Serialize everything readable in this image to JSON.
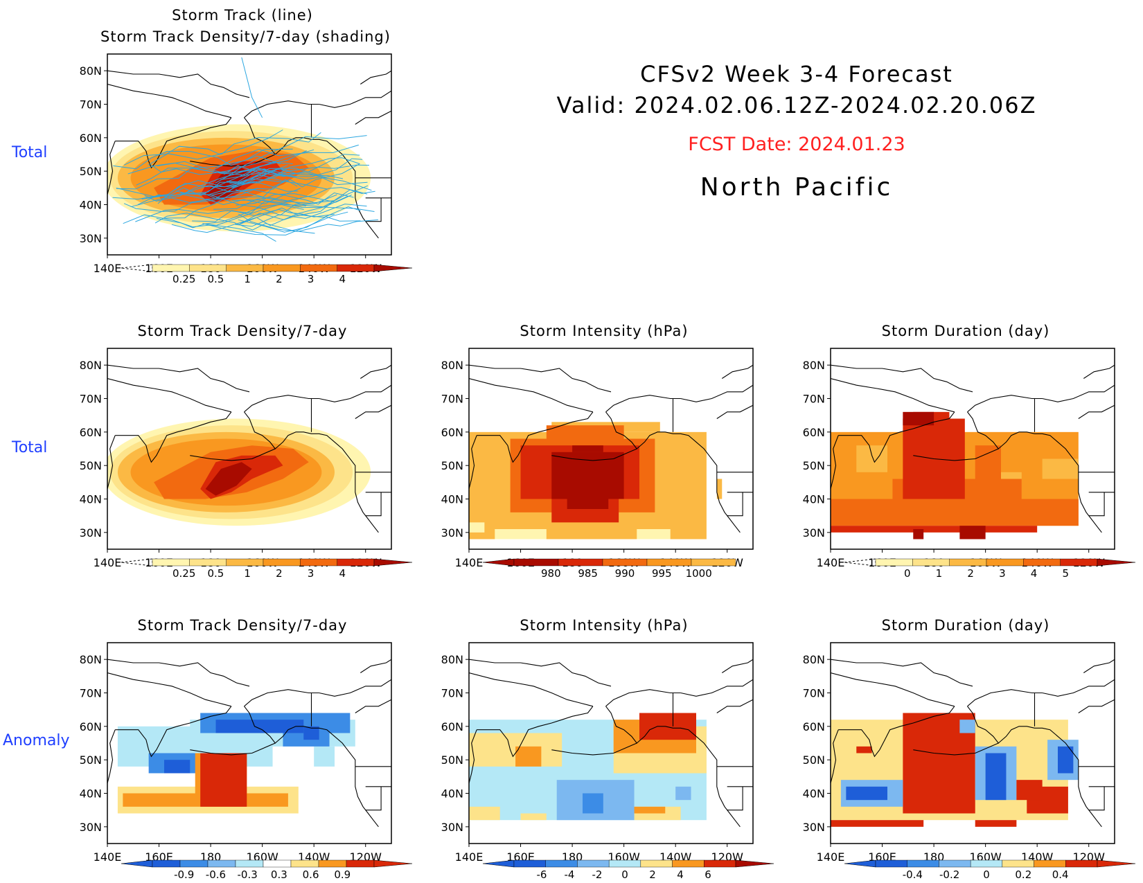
{
  "header": {
    "title_line1": "CFSv2 Week 3-4 Forecast",
    "title_line2": "Valid: 2024.02.06.12Z-2024.02.20.06Z",
    "fcst_date": "FCST Date: 2024.01.23",
    "region": "North Pacific"
  },
  "row_labels": {
    "total1": "Total",
    "total2": "Total",
    "anomaly": "Anomaly"
  },
  "axes": {
    "lat_ticks": [
      "80N",
      "70N",
      "60N",
      "50N",
      "40N",
      "30N"
    ],
    "lon_ticks": [
      "140E",
      "160E",
      "180",
      "160W",
      "140W",
      "120W"
    ]
  },
  "colors": {
    "warm": [
      "#fff5b0",
      "#fde38a",
      "#fbb944",
      "#f99820",
      "#f26a10",
      "#d92808",
      "#a80b00"
    ],
    "cool": [
      "#1e5ed8",
      "#3c8ce6",
      "#7cb8f0",
      "#b4e8f6"
    ],
    "track_line": "#2aa6e0"
  },
  "chart_data": [
    {
      "id": "top-total",
      "type": "heatmap",
      "title_line1": "Storm Track (line)",
      "title_line2": "Storm Track Density/7-day (shading)",
      "colorbar": {
        "labels": [
          "0.25",
          "0.5",
          "1",
          "2",
          "3",
          "4"
        ]
      }
    },
    {
      "id": "density-total",
      "type": "heatmap",
      "title": "Storm Track Density/7-day",
      "colorbar": {
        "labels": [
          "0.25",
          "0.5",
          "1",
          "2",
          "3",
          "4"
        ]
      }
    },
    {
      "id": "intensity-total",
      "type": "heatmap",
      "title": "Storm Intensity (hPa)",
      "colorbar": {
        "labels": [
          "980",
          "985",
          "990",
          "995",
          "1000"
        ]
      }
    },
    {
      "id": "duration-total",
      "type": "heatmap",
      "title": "Storm Duration (day)",
      "colorbar": {
        "labels": [
          "0",
          "1",
          "2",
          "3",
          "4",
          "5"
        ]
      }
    },
    {
      "id": "density-anomaly",
      "type": "heatmap",
      "title": "Storm Track Density/7-day",
      "colorbar": {
        "labels": [
          "-0.9",
          "-0.6",
          "-0.3",
          "0.3",
          "0.6",
          "0.9"
        ]
      }
    },
    {
      "id": "intensity-anomaly",
      "type": "heatmap",
      "title": "Storm Intensity (hPa)",
      "colorbar": {
        "labels": [
          "-6",
          "-4",
          "-2",
          "0",
          "2",
          "4",
          "6"
        ]
      }
    },
    {
      "id": "duration-anomaly",
      "type": "heatmap",
      "title": "Storm Duration (day)",
      "colorbar": {
        "labels": [
          "-0.4",
          "-0.2",
          "0",
          "0.2",
          "0.4"
        ]
      }
    }
  ]
}
